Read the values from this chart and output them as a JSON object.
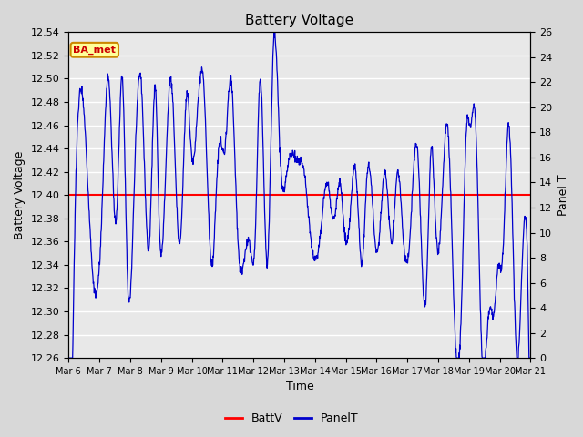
{
  "title": "Battery Voltage",
  "ylabel_left": "Battery Voltage",
  "ylabel_right": "Panel T",
  "xlabel": "Time",
  "ylim_left": [
    12.26,
    12.54
  ],
  "ylim_right": [
    0,
    26
  ],
  "yticks_left": [
    12.26,
    12.28,
    12.3,
    12.32,
    12.34,
    12.36,
    12.38,
    12.4,
    12.42,
    12.44,
    12.46,
    12.48,
    12.5,
    12.52,
    12.54
  ],
  "yticks_right": [
    0,
    2,
    4,
    6,
    8,
    10,
    12,
    14,
    16,
    18,
    20,
    22,
    24,
    26
  ],
  "xtick_labels": [
    "Mar 6",
    "Mar 7",
    "Mar 8",
    "Mar 9",
    "Mar 10",
    "Mar 11",
    "Mar 12",
    "Mar 13",
    "Mar 14",
    "Mar 15",
    "Mar 16",
    "Mar 17",
    "Mar 18",
    "Mar 19",
    "Mar 20",
    "Mar 21"
  ],
  "battv_value": 12.4,
  "battv_color": "#ff0000",
  "panelt_color": "#0000cc",
  "fig_bg_color": "#d8d8d8",
  "plot_bg_color": "#e8e8e8",
  "grid_color": "#ffffff",
  "legend_battv": "BattV",
  "legend_panelt": "PanelT",
  "annotation_text": "BA_met",
  "annotation_bg": "#ffff99",
  "annotation_border": "#cc8800",
  "title_fontsize": 11,
  "label_fontsize": 9,
  "tick_fontsize": 8
}
